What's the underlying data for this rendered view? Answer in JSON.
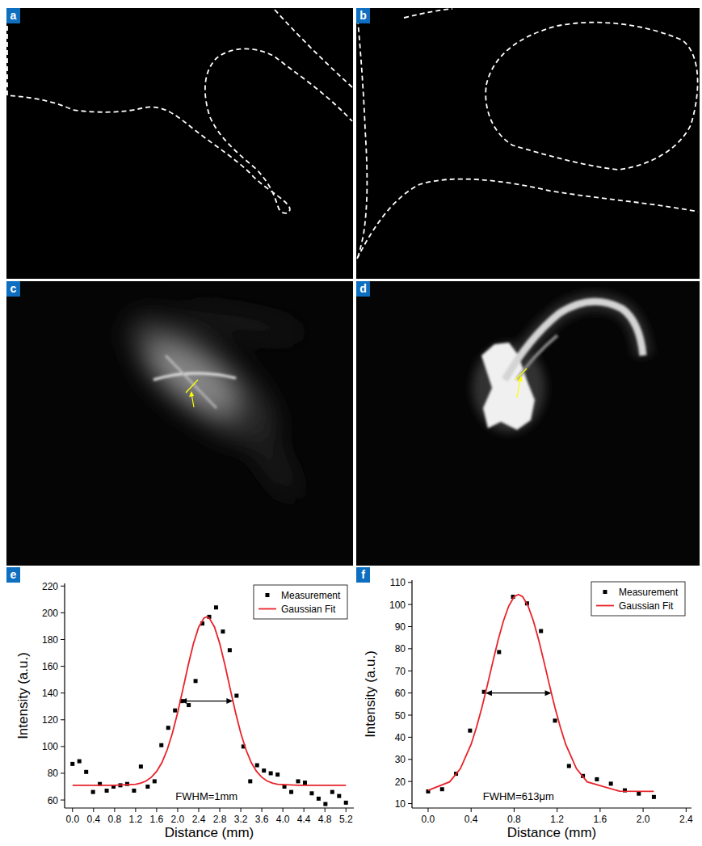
{
  "panel_labels": [
    "a",
    "b",
    "c",
    "d"
  ],
  "chart_data": [
    {
      "type": "scatter",
      "panel_label": "e",
      "x_label": "Distance (mm)",
      "y_label": "Intensity (a.u.)",
      "annotations": [
        "FWHM=1mm"
      ],
      "legend": "top-right",
      "xlim": [
        -0.15,
        5.35
      ],
      "xticks": [
        {
          "value": 0,
          "label": "0.0"
        },
        0.4,
        0.8,
        1.2,
        1.6,
        {
          "value": 2,
          "label": "2.0"
        },
        2.4,
        2.8,
        3.2,
        3.6,
        {
          "value": 4,
          "label": "4.0"
        },
        4.4,
        4.8,
        5.2
      ],
      "ylim": [
        54,
        222
      ],
      "yticks": [
        60,
        80,
        100,
        120,
        140,
        160,
        180,
        200,
        220
      ],
      "series": [
        {
          "name": "Measurement",
          "type": "scatter",
          "marker": "square",
          "color": "#000000",
          "x": [
            0,
            0.13,
            0.26,
            0.39,
            0.52,
            0.65,
            0.78,
            0.91,
            1.04,
            1.17,
            1.3,
            1.43,
            1.56,
            1.69,
            1.82,
            1.95,
            2.08,
            2.21,
            2.34,
            2.47,
            2.6,
            2.73,
            2.86,
            2.99,
            3.12,
            3.25,
            3.38,
            3.51,
            3.64,
            3.77,
            3.9,
            4.03,
            4.16,
            4.29,
            4.42,
            4.55,
            4.68,
            4.81,
            4.94,
            5.07,
            5.2
          ],
          "values": [
            87,
            89,
            81,
            66,
            72,
            67,
            70,
            71,
            72,
            67,
            85,
            70,
            74,
            101,
            114,
            127,
            134,
            131,
            149,
            192,
            197,
            204,
            186,
            172,
            138,
            100,
            74,
            86,
            82,
            80,
            79,
            70,
            66,
            74,
            73,
            65,
            61,
            57,
            66,
            63,
            58
          ]
        },
        {
          "name": "Gaussian Fit",
          "type": "line",
          "line_style": "solid",
          "color": "#e8232a",
          "x": [
            0,
            0.4,
            0.8,
            1.2,
            1.3,
            1.4,
            1.5,
            1.6,
            1.7,
            1.8,
            1.9,
            2.0,
            2.1,
            2.2,
            2.3,
            2.4,
            2.5,
            2.55,
            2.6,
            2.7,
            2.8,
            2.9,
            3.0,
            3.1,
            3.2,
            3.3,
            3.4,
            3.5,
            3.6,
            3.7,
            3.8,
            3.9,
            4.3,
            4.7,
            5.2
          ],
          "values": [
            71,
            71,
            71,
            71.8,
            72.7,
            74.2,
            77.0,
            81.4,
            88.0,
            97.5,
            110.1,
            125.5,
            142.9,
            160.8,
            177.0,
            189.4,
            196.1,
            197,
            196.1,
            189.4,
            177.0,
            160.8,
            142.9,
            125.5,
            110.1,
            97.5,
            88.0,
            81.4,
            77.0,
            74.2,
            72.7,
            71.8,
            71,
            71,
            71
          ]
        }
      ]
    },
    {
      "type": "scatter",
      "panel_label": "f",
      "x_label": "Distance (mm)",
      "y_label": "Intensity (a.u.)",
      "annotations": [
        "FWHM=613μm"
      ],
      "legend": "top-right",
      "xlim": [
        -0.15,
        2.45
      ],
      "xticks": [
        {
          "value": 0,
          "label": "0.0"
        },
        0.4,
        0.8,
        1.2,
        1.6,
        {
          "value": 2,
          "label": "2.0"
        },
        2.4
      ],
      "ylim": [
        8,
        111
      ],
      "yticks": [
        10,
        20,
        30,
        40,
        50,
        60,
        70,
        80,
        90,
        100,
        110
      ],
      "series": [
        {
          "name": "Measurement",
          "type": "scatter",
          "marker": "square",
          "color": "#000000",
          "x": [
            0,
            0.13,
            0.26,
            0.39,
            0.52,
            0.66,
            0.79,
            0.92,
            1.05,
            1.18,
            1.31,
            1.44,
            1.57,
            1.7,
            1.83,
            1.96,
            2.1
          ],
          "values": [
            15.5,
            16.5,
            23.5,
            43,
            60.5,
            78.5,
            103.5,
            100.5,
            88,
            47.5,
            27,
            22.5,
            21,
            19,
            16,
            14.5,
            13
          ]
        },
        {
          "name": "Gaussian Fit",
          "type": "line",
          "line_style": "solid",
          "color": "#e8232a",
          "x": [
            0,
            0.2,
            0.3,
            0.4,
            0.45,
            0.5,
            0.55,
            0.6,
            0.65,
            0.7,
            0.75,
            0.8,
            0.84,
            0.88,
            0.93,
            0.98,
            1.03,
            1.08,
            1.13,
            1.18,
            1.23,
            1.28,
            1.38,
            1.48,
            1.78,
            2.1
          ],
          "values": [
            16.0,
            19.8,
            25.8,
            36.8,
            44.5,
            53.4,
            63.3,
            73.7,
            83.7,
            92.5,
            99.3,
            103.5,
            104.5,
            103.5,
            99.3,
            92.5,
            83.7,
            73.7,
            63.3,
            53.4,
            44.5,
            36.8,
            25.8,
            19.8,
            15.6,
            15.5
          ]
        }
      ]
    }
  ]
}
